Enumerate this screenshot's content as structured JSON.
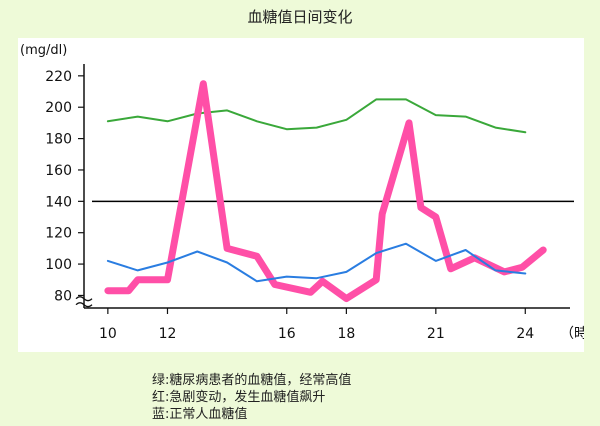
{
  "title": "血糖值日间变化",
  "notes": [
    "绿:糖尿病患者的血糖值，经常高值",
    "红:急剧变动，发生血糖值飙升",
    "蓝:正常人血糖值"
  ],
  "chart_data": {
    "type": "line",
    "title": "血糖值日间变化",
    "ylabel": "(mg/dl)",
    "xlabel": "時",
    "ylim": [
      72,
      225
    ],
    "xlim": [
      9.2,
      25.5
    ],
    "yticks": [
      80,
      100,
      120,
      140,
      160,
      180,
      200,
      220
    ],
    "xticks": [
      10,
      12,
      16,
      18,
      21,
      24
    ],
    "y_axis_break": true,
    "reference_line": 140,
    "grid": false,
    "series": [
      {
        "color": "#3aa83a",
        "x": [
          10,
          11,
          12,
          13,
          14,
          15,
          16,
          17,
          18,
          19,
          20,
          21,
          22,
          23,
          24
        ],
        "y": [
          191,
          194,
          191,
          196,
          198,
          191,
          186,
          187,
          192,
          205,
          205,
          195,
          194,
          187,
          184
        ]
      },
      {
        "color": "#ff4fa7",
        "x": [
          10,
          10.7,
          11,
          12,
          13.2,
          14,
          15,
          15.6,
          16.8,
          17.2,
          18,
          19,
          19.2,
          20.1,
          20.5,
          21,
          21.5,
          22.3,
          23.3,
          23.9,
          24.6
        ],
        "y": [
          83,
          83,
          90,
          90,
          215,
          110,
          105,
          87,
          82,
          89,
          78,
          90,
          132,
          190,
          136,
          130,
          97,
          104,
          95,
          98,
          109
        ]
      },
      {
        "color": "#2a7de1",
        "x": [
          10,
          11,
          12,
          13,
          14,
          15,
          16,
          17,
          18,
          19,
          20,
          21,
          22,
          23,
          24
        ],
        "y": [
          102,
          96,
          101,
          108,
          101,
          89,
          92,
          91,
          95,
          107,
          113,
          102,
          109,
          96,
          94
        ]
      }
    ]
  }
}
